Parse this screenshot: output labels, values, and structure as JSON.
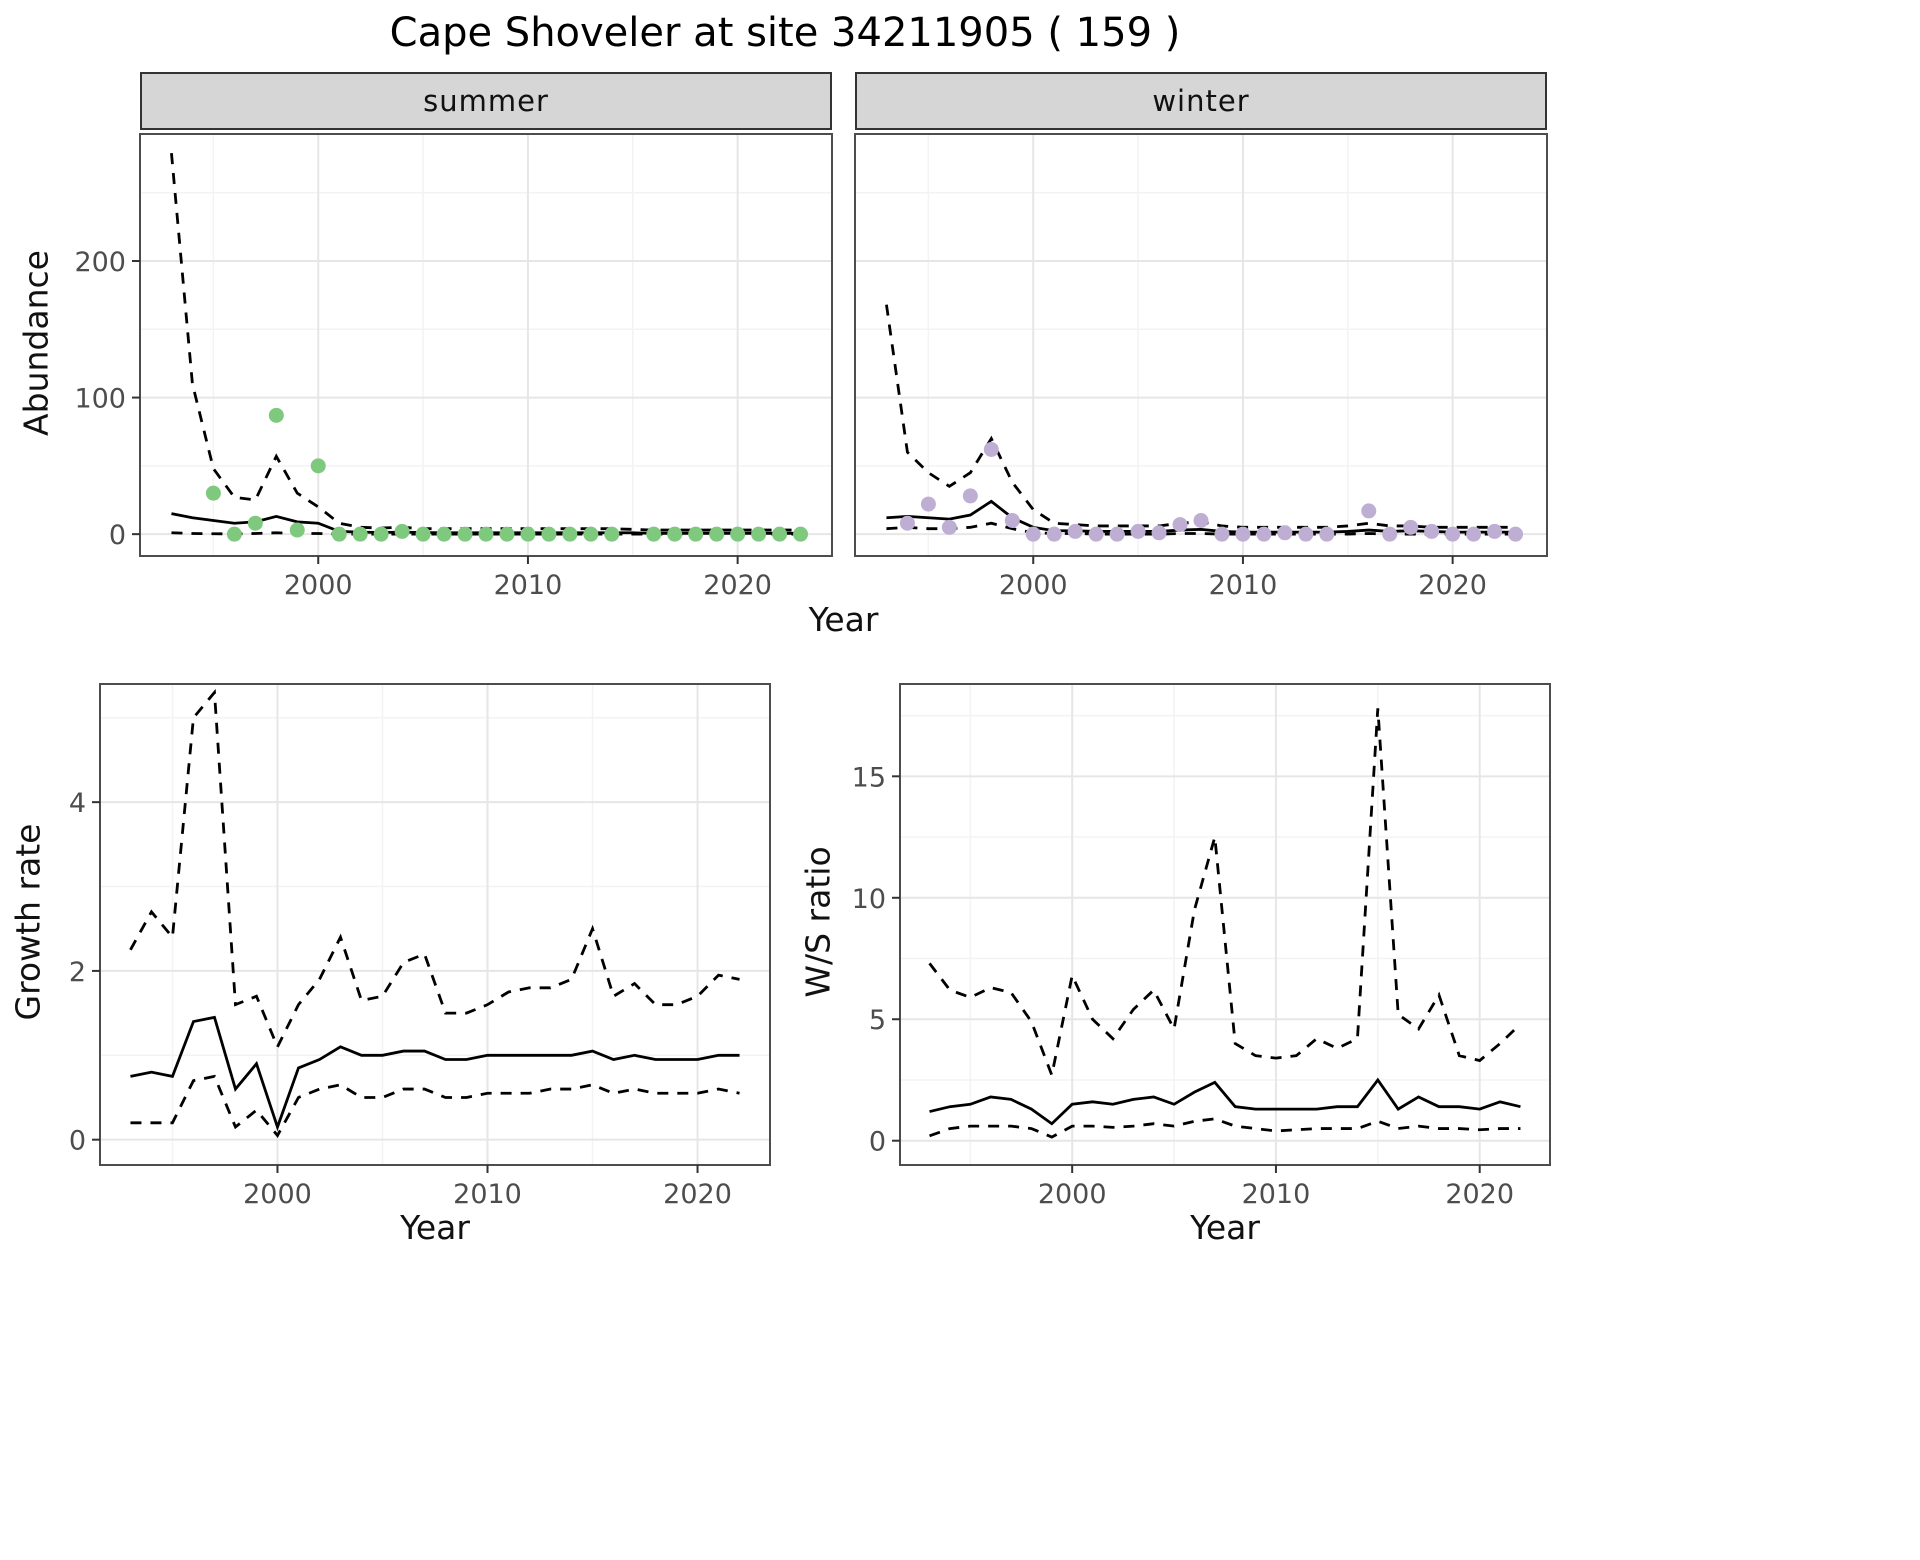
{
  "title": "Cape Shoveler at site 34211905 ( 159 )",
  "palette": {
    "summer_point": "#7FC97F",
    "winter_point": "#BEAED4",
    "line": "#000000",
    "grid_major": "#E6E6E6",
    "grid_minor": "#F3F3F3",
    "panel_border": "#4D4D4D",
    "strip_bg": "#D6D6D6",
    "axis_text": "#4D4D4D"
  },
  "top_row": {
    "ylabel": "Abundance",
    "xlabel": "Year",
    "facets": [
      {
        "label": "summer"
      },
      {
        "label": "winter"
      }
    ]
  },
  "bottom_left": {
    "ylabel": "Growth rate",
    "xlabel": "Year"
  },
  "bottom_right": {
    "ylabel": "W/S ratio",
    "xlabel": "Year"
  },
  "chart_data": [
    {
      "id": "abundance_summer",
      "type": "scatter+line",
      "facet_label": "summer",
      "xlabel": "Year",
      "ylabel": "Abundance",
      "xlim": [
        1991.5,
        2024.5
      ],
      "ylim": [
        -16,
        293
      ],
      "xticks": [
        2000,
        2010,
        2020
      ],
      "yticks": [
        0,
        100,
        200
      ],
      "point_color": "#7FC97F",
      "years": [
        1993,
        1994,
        1995,
        1996,
        1997,
        1998,
        1999,
        2000,
        2001,
        2002,
        2003,
        2004,
        2005,
        2006,
        2007,
        2008,
        2009,
        2010,
        2011,
        2012,
        2013,
        2014,
        2015,
        2016,
        2017,
        2018,
        2019,
        2020,
        2021,
        2022,
        2023
      ],
      "series": [
        {
          "name": "observed",
          "style": "points",
          "values": [
            null,
            null,
            30,
            0,
            8,
            87,
            3,
            50,
            0,
            0,
            0,
            2,
            0,
            0,
            0,
            0,
            0,
            0,
            0,
            0,
            0,
            0,
            null,
            0,
            0,
            0,
            0,
            0,
            0,
            0,
            0
          ]
        },
        {
          "name": "fit",
          "style": "solid",
          "values": [
            15,
            12,
            10,
            8,
            9,
            13,
            9,
            8,
            2,
            1.5,
            1.2,
            1.5,
            1.2,
            1,
            1,
            1,
            1,
            1,
            1,
            1,
            1,
            1,
            1,
            0.6,
            0.6,
            0.6,
            0.6,
            0.6,
            0.6,
            0.6,
            0.6
          ]
        },
        {
          "name": "upper_ci",
          "style": "dashed",
          "values": [
            279,
            110,
            48,
            27,
            25,
            57,
            30,
            20,
            8,
            5,
            4.5,
            5,
            4,
            4,
            4,
            4,
            4,
            4,
            4,
            4,
            4,
            4,
            3.5,
            3,
            3,
            3,
            3,
            3,
            3,
            3,
            3
          ]
        },
        {
          "name": "lower_ci",
          "style": "dashed",
          "values": [
            1,
            0.5,
            0.3,
            0.2,
            0.5,
            1,
            0.5,
            0.5,
            0,
            0,
            0,
            0,
            0,
            0,
            0,
            0,
            0,
            0,
            0,
            0,
            0,
            0,
            0,
            0,
            0,
            0,
            0,
            0,
            0,
            0,
            0
          ]
        }
      ]
    },
    {
      "id": "abundance_winter",
      "type": "scatter+line",
      "facet_label": "winter",
      "xlabel": "Year",
      "ylabel": "Abundance",
      "xlim": [
        1991.5,
        2024.5
      ],
      "ylim": [
        -16,
        293
      ],
      "xticks": [
        2000,
        2010,
        2020
      ],
      "yticks": [
        0,
        100,
        200
      ],
      "point_color": "#BEAED4",
      "years": [
        1993,
        1994,
        1995,
        1996,
        1997,
        1998,
        1999,
        2000,
        2001,
        2002,
        2003,
        2004,
        2005,
        2006,
        2007,
        2008,
        2009,
        2010,
        2011,
        2012,
        2013,
        2014,
        2015,
        2016,
        2017,
        2018,
        2019,
        2020,
        2021,
        2022,
        2023
      ],
      "series": [
        {
          "name": "observed",
          "style": "points",
          "values": [
            null,
            8,
            22,
            5,
            28,
            62,
            10,
            0,
            0,
            2,
            0,
            0,
            2,
            1,
            7,
            10,
            0,
            0,
            0,
            1,
            0,
            0,
            null,
            17,
            0,
            5,
            2,
            0,
            0,
            2,
            0
          ]
        },
        {
          "name": "fit",
          "style": "solid",
          "values": [
            12,
            13,
            12,
            11,
            14,
            24,
            12,
            5,
            2.5,
            2.5,
            2,
            2,
            2,
            2,
            3,
            3.5,
            2,
            1.5,
            1.5,
            1.5,
            1.5,
            1.5,
            2,
            3,
            2,
            2.5,
            2,
            1.5,
            1.5,
            1.5,
            1.5
          ]
        },
        {
          "name": "upper_ci",
          "style": "dashed",
          "values": [
            168,
            60,
            45,
            35,
            45,
            70,
            38,
            18,
            8,
            7,
            6,
            6,
            6,
            6,
            8,
            9,
            6,
            5,
            5,
            5,
            5,
            5,
            6,
            8,
            6,
            6,
            5,
            5,
            5,
            5,
            5
          ]
        },
        {
          "name": "lower_ci",
          "style": "dashed",
          "values": [
            4,
            5,
            4,
            4,
            5,
            8,
            4,
            1,
            0.5,
            0.5,
            0,
            0,
            0,
            0,
            0.5,
            0.5,
            0,
            0,
            0,
            0,
            0,
            0,
            0,
            0.5,
            0,
            0,
            0,
            0,
            0,
            0,
            0
          ]
        }
      ]
    },
    {
      "id": "growth_rate",
      "type": "line",
      "xlabel": "Year",
      "ylabel": "Growth rate",
      "xlim": [
        1991.55,
        2023.45
      ],
      "ylim": [
        -0.3,
        5.4
      ],
      "xticks": [
        2000,
        2010,
        2020
      ],
      "yticks": [
        0,
        2,
        4
      ],
      "years": [
        1993,
        1994,
        1995,
        1996,
        1997,
        1998,
        1999,
        2000,
        2001,
        2002,
        2003,
        2004,
        2005,
        2006,
        2007,
        2008,
        2009,
        2010,
        2011,
        2012,
        2013,
        2014,
        2015,
        2016,
        2017,
        2018,
        2019,
        2020,
        2021,
        2022
      ],
      "series": [
        {
          "name": "fit",
          "style": "solid",
          "values": [
            0.75,
            0.8,
            0.75,
            1.4,
            1.45,
            0.6,
            0.9,
            0.15,
            0.85,
            0.95,
            1.1,
            1.0,
            1.0,
            1.05,
            1.05,
            0.95,
            0.95,
            1.0,
            1.0,
            1.0,
            1.0,
            1.0,
            1.05,
            0.95,
            1.0,
            0.95,
            0.95,
            0.95,
            1.0,
            1.0
          ]
        },
        {
          "name": "upper_ci",
          "style": "dashed",
          "values": [
            2.25,
            2.7,
            2.4,
            5.0,
            5.3,
            1.6,
            1.7,
            1.1,
            1.6,
            1.9,
            2.4,
            1.65,
            1.7,
            2.1,
            2.2,
            1.5,
            1.5,
            1.6,
            1.75,
            1.8,
            1.8,
            1.9,
            2.5,
            1.7,
            1.85,
            1.6,
            1.6,
            1.7,
            1.95,
            1.9
          ]
        },
        {
          "name": "lower_ci",
          "style": "dashed",
          "values": [
            0.2,
            0.2,
            0.2,
            0.7,
            0.75,
            0.15,
            0.35,
            0.05,
            0.5,
            0.6,
            0.65,
            0.5,
            0.5,
            0.6,
            0.6,
            0.5,
            0.5,
            0.55,
            0.55,
            0.55,
            0.6,
            0.6,
            0.65,
            0.55,
            0.6,
            0.55,
            0.55,
            0.55,
            0.6,
            0.55
          ]
        }
      ]
    },
    {
      "id": "ws_ratio",
      "type": "line",
      "xlabel": "Year",
      "ylabel": "W/S ratio",
      "xlim": [
        1991.55,
        2023.45
      ],
      "ylim": [
        -1,
        18.8
      ],
      "xticks": [
        2000,
        2010,
        2020
      ],
      "yticks": [
        0,
        5,
        10,
        15
      ],
      "years": [
        1993,
        1994,
        1995,
        1996,
        1997,
        1998,
        1999,
        2000,
        2001,
        2002,
        2003,
        2004,
        2005,
        2006,
        2007,
        2008,
        2009,
        2010,
        2011,
        2012,
        2013,
        2014,
        2015,
        2016,
        2017,
        2018,
        2019,
        2020,
        2021,
        2022
      ],
      "series": [
        {
          "name": "fit",
          "style": "solid",
          "values": [
            1.2,
            1.4,
            1.5,
            1.8,
            1.7,
            1.3,
            0.7,
            1.5,
            1.6,
            1.5,
            1.7,
            1.8,
            1.5,
            2.0,
            2.4,
            1.4,
            1.3,
            1.3,
            1.3,
            1.3,
            1.4,
            1.4,
            2.5,
            1.3,
            1.8,
            1.4,
            1.4,
            1.3,
            1.6,
            1.4
          ]
        },
        {
          "name": "upper_ci",
          "style": "dashed",
          "values": [
            7.3,
            6.2,
            5.9,
            6.3,
            6.1,
            4.9,
            2.7,
            6.8,
            5.0,
            4.2,
            5.4,
            6.2,
            4.6,
            9.5,
            12.5,
            4.0,
            3.5,
            3.4,
            3.5,
            4.2,
            3.8,
            4.2,
            17.8,
            5.2,
            4.6,
            6.0,
            3.5,
            3.3,
            4.0,
            4.8
          ]
        },
        {
          "name": "lower_ci",
          "style": "dashed",
          "values": [
            0.2,
            0.5,
            0.6,
            0.6,
            0.6,
            0.5,
            0.15,
            0.6,
            0.6,
            0.55,
            0.6,
            0.7,
            0.6,
            0.8,
            0.9,
            0.6,
            0.5,
            0.4,
            0.45,
            0.5,
            0.5,
            0.5,
            0.8,
            0.5,
            0.6,
            0.5,
            0.5,
            0.45,
            0.5,
            0.5
          ]
        }
      ]
    }
  ]
}
